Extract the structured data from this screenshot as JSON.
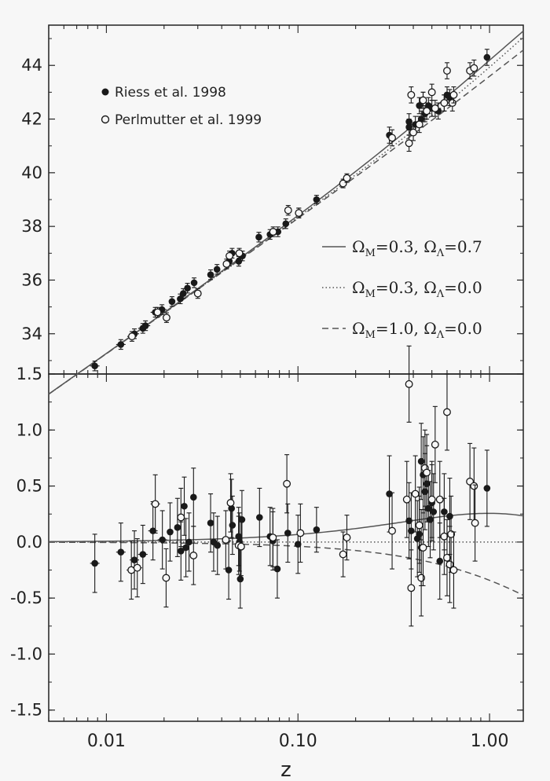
{
  "chart_data": [
    {
      "type": "scatter",
      "panel": "top",
      "xscale": "log",
      "xlim": [
        0.005,
        1.5
      ],
      "ylim": [
        32.5,
        45.5
      ],
      "yticks": [
        34,
        36,
        38,
        40,
        42,
        44
      ],
      "grid": false,
      "legend_position": "top-left",
      "series": [
        {
          "name": "Riess et al. 1998",
          "marker": "filled-circle",
          "x": [
            0.0087,
            0.0119,
            0.014,
            0.0155,
            0.016,
            0.018,
            0.0195,
            0.022,
            0.0243,
            0.0252,
            0.0265,
            0.0287,
            0.035,
            0.0378,
            0.0438,
            0.0453,
            0.0491,
            0.0513,
            0.0625,
            0.0715,
            0.0786,
            0.0864,
            0.101,
            0.125,
            0.3,
            0.38,
            0.38,
            0.41,
            0.43,
            0.44,
            0.45,
            0.46,
            0.48,
            0.5,
            0.54,
            0.58,
            0.6,
            0.62,
            0.97
          ],
          "y": [
            32.8,
            33.6,
            34.0,
            34.2,
            34.3,
            34.8,
            34.9,
            35.2,
            35.3,
            35.5,
            35.7,
            35.9,
            36.2,
            36.4,
            36.7,
            37.0,
            36.7,
            36.9,
            37.6,
            37.7,
            37.8,
            38.1,
            38.5,
            39.0,
            41.4,
            41.7,
            41.9,
            41.8,
            42.5,
            42.0,
            42.7,
            42.2,
            42.5,
            42.4,
            42.3,
            42.6,
            42.9,
            42.8,
            44.3
          ]
        },
        {
          "name": "Perlmutter et al. 1999",
          "marker": "open-circle",
          "x": [
            0.0136,
            0.0185,
            0.0206,
            0.03,
            0.0424,
            0.0439,
            0.0494,
            0.0742,
            0.0889,
            0.101,
            0.172,
            0.18,
            0.31,
            0.38,
            0.39,
            0.4,
            0.43,
            0.45,
            0.47,
            0.5,
            0.52,
            0.58,
            0.6,
            0.64,
            0.65,
            0.79,
            0.83
          ],
          "y": [
            33.9,
            34.8,
            34.6,
            35.5,
            36.6,
            36.9,
            37.0,
            37.8,
            38.6,
            38.5,
            39.6,
            39.8,
            41.3,
            41.1,
            42.9,
            41.5,
            41.8,
            42.7,
            42.3,
            43.0,
            42.4,
            42.6,
            43.8,
            42.6,
            42.9,
            43.8,
            43.9
          ]
        }
      ],
      "lines": [
        {
          "label": "ΩM=0.3, ΩΛ=0.7",
          "model": [
            0.3,
            0.7
          ],
          "style": "solid"
        },
        {
          "label": "ΩM=0.3, ΩΛ=0.0",
          "model": [
            0.3,
            0.0
          ],
          "style": "dotted"
        },
        {
          "label": "ΩM=1.0, ΩΛ=0.0",
          "model": [
            1.0,
            0.0
          ],
          "style": "dashed"
        }
      ]
    },
    {
      "type": "scatter",
      "panel": "bottom",
      "xscale": "log",
      "xlabel": "z",
      "xlim": [
        0.005,
        1.5
      ],
      "xticks": [
        0.01,
        0.1,
        1.0
      ],
      "xtick_labels": [
        "0.01",
        "0.10",
        "1.00"
      ],
      "ylim": [
        -1.6,
        1.5
      ],
      "yticks": [
        -1.5,
        -1.0,
        -0.5,
        0.0,
        0.5,
        1.0,
        1.5
      ],
      "ytick_labels": [
        "-1.5",
        "-1.0",
        "-0.5",
        "0.0",
        "0.5",
        "1.0",
        "1.5"
      ],
      "grid": false,
      "series": [
        {
          "name": "Riess et al. 1998",
          "marker": "filled-circle",
          "x": [
            0.0087,
            0.0119,
            0.014,
            0.0155,
            0.0175,
            0.0196,
            0.0215,
            0.0235,
            0.0245,
            0.0255,
            0.026,
            0.027,
            0.0285,
            0.035,
            0.0363,
            0.038,
            0.0435,
            0.045,
            0.0455,
            0.049,
            0.0495,
            0.05,
            0.051,
            0.063,
            0.0715,
            0.074,
            0.078,
            0.0885,
            0.1,
            0.125,
            0.3,
            0.38,
            0.39,
            0.42,
            0.43,
            0.44,
            0.44,
            0.45,
            0.46,
            0.47,
            0.48,
            0.49,
            0.5,
            0.51,
            0.55,
            0.58,
            0.62,
            0.97
          ],
          "y": [
            -0.19,
            -0.09,
            -0.16,
            -0.11,
            0.1,
            0.02,
            0.09,
            0.13,
            -0.08,
            0.32,
            -0.05,
            0.0,
            0.4,
            0.17,
            0.0,
            -0.03,
            -0.25,
            0.3,
            0.15,
            0.05,
            0.0,
            -0.33,
            0.2,
            0.22,
            0.05,
            0.01,
            -0.24,
            0.08,
            -0.02,
            0.11,
            0.43,
            0.19,
            0.1,
            0.03,
            0.07,
            0.72,
            -0.05,
            0.6,
            0.45,
            0.52,
            0.3,
            0.2,
            0.35,
            0.27,
            -0.17,
            0.27,
            0.23,
            0.48
          ]
        },
        {
          "name": "Perlmutter et al. 1999",
          "marker": "open-circle",
          "x": [
            0.0135,
            0.0145,
            0.018,
            0.0205,
            0.0245,
            0.0285,
            0.042,
            0.0445,
            0.049,
            0.0505,
            0.074,
            0.0875,
            0.103,
            0.172,
            0.18,
            0.31,
            0.37,
            0.38,
            0.39,
            0.41,
            0.43,
            0.44,
            0.45,
            0.46,
            0.47,
            0.5,
            0.52,
            0.55,
            0.58,
            0.6,
            0.6,
            0.62,
            0.63,
            0.65,
            0.79,
            0.83,
            0.84
          ],
          "y": [
            -0.25,
            -0.23,
            0.34,
            -0.32,
            0.22,
            -0.12,
            0.02,
            0.35,
            -0.03,
            -0.04,
            0.04,
            0.52,
            0.08,
            -0.11,
            0.04,
            0.1,
            0.38,
            1.41,
            -0.41,
            0.43,
            0.15,
            -0.32,
            -0.05,
            0.66,
            0.62,
            0.38,
            0.87,
            0.38,
            0.05,
            -0.14,
            1.16,
            -0.2,
            0.07,
            -0.25,
            0.54,
            0.5,
            0.17
          ]
        }
      ],
      "lines": [
        {
          "label": "ΩM=0.3, ΩΛ=0.7",
          "model": [
            0.3,
            0.7
          ],
          "style": "solid"
        },
        {
          "label": "ΩM=0.3, ΩΛ=0.0",
          "model": [
            0.3,
            0.0
          ],
          "style": "dotted"
        },
        {
          "label": "ΩM=1.0, ΩΛ=0.0",
          "model": [
            1.0,
            0.0
          ],
          "style": "dashed"
        }
      ]
    }
  ],
  "legend": {
    "riess_label": "Riess et al. 1998",
    "perlmutter_label": "Perlmutter et al. 1999"
  },
  "models": {
    "m1": {
      "om": "Ω",
      "om_sub": "M",
      "om_val": "=0.3, ",
      "ol": "Ω",
      "ol_sub": "Λ",
      "ol_val": "=0.7"
    },
    "m2": {
      "om": "Ω",
      "om_sub": "M",
      "om_val": "=0.3, ",
      "ol": "Ω",
      "ol_sub": "Λ",
      "ol_val": "=0.0"
    },
    "m3": {
      "om": "Ω",
      "om_sub": "M",
      "om_val": "=1.0, ",
      "ol": "Ω",
      "ol_sub": "Λ",
      "ol_val": "=0.0"
    }
  },
  "colors": {
    "axis": "#222222",
    "model_line": "#555555",
    "marker": "#1a1a1a",
    "background": "#f7f7f7"
  }
}
